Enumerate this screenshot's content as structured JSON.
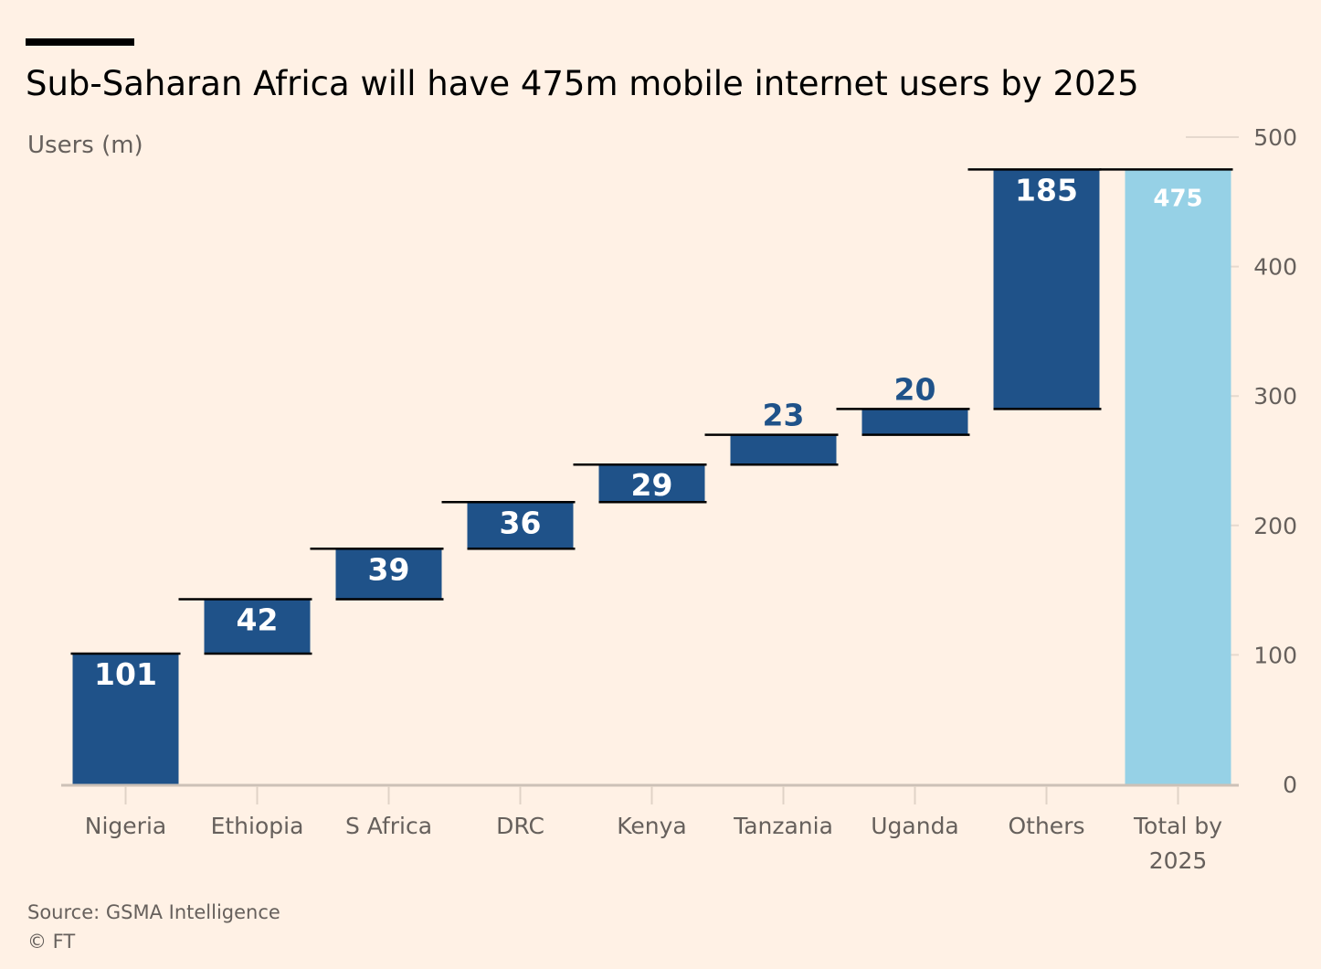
{
  "title": "Sub-Saharan Africa will have 475m mobile internet users by 2025",
  "source": "Source: GSMA Intelligence",
  "copyright": "© FT",
  "colors": {
    "background": "#FFF1E5",
    "bar": "#1F5289",
    "total_bar": "#96D1E6",
    "bar_label_inside": "#FFFFFF",
    "bar_label_above": "#1F5289",
    "axis_text": "#66605C",
    "connector": "#000000"
  },
  "chart_data": {
    "type": "bar",
    "subtype": "waterfall",
    "title": "Sub-Saharan Africa will have 475m mobile internet users by 2025",
    "ylabel": "Users (m)",
    "ylim": [
      0,
      500
    ],
    "yticks": [
      0,
      100,
      200,
      300,
      400,
      500
    ],
    "y_axis_position": "right",
    "grid": false,
    "legend": "none",
    "categories": [
      "Nigeria",
      "Ethiopia",
      "S Africa",
      "DRC",
      "Kenya",
      "Tanzania",
      "Uganda",
      "Others",
      "Total by 2025"
    ],
    "values": [
      101,
      42,
      39,
      36,
      29,
      23,
      20,
      185,
      475
    ],
    "data_labels": [
      "101",
      "42",
      "39",
      "36",
      "29",
      "23",
      "20",
      "185",
      "475"
    ],
    "cumulative_start": [
      0,
      101,
      143,
      182,
      218,
      247,
      270,
      290,
      0
    ]
  }
}
